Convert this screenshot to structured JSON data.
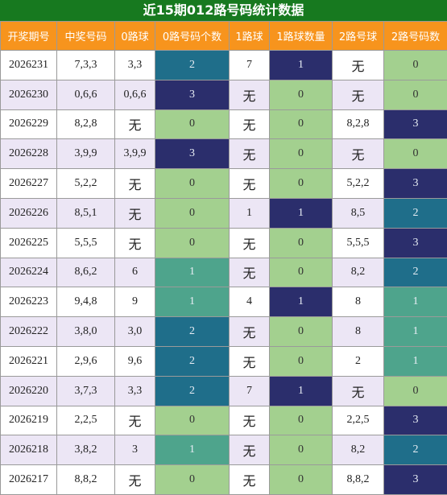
{
  "title": "近15期012路号码统计数据",
  "table": {
    "header": [
      "开奖期号",
      "中奖号码",
      "0路球",
      "0路号码个数",
      "1路球",
      "1路球数量",
      "2路号球",
      "2路号码数"
    ],
    "rows": [
      [
        "2026231",
        "7,3,3",
        "3,3",
        2,
        "7",
        1,
        "无",
        0
      ],
      [
        "2026230",
        "0,6,6",
        "0,6,6",
        3,
        "无",
        0,
        "无",
        0
      ],
      [
        "2026229",
        "8,2,8",
        "无",
        0,
        "无",
        0,
        "8,2,8",
        3
      ],
      [
        "2026228",
        "3,9,9",
        "3,9,9",
        3,
        "无",
        0,
        "无",
        0
      ],
      [
        "2026227",
        "5,2,2",
        "无",
        0,
        "无",
        0,
        "5,2,2",
        3
      ],
      [
        "2026226",
        "8,5,1",
        "无",
        0,
        "1",
        1,
        "8,5",
        2
      ],
      [
        "2026225",
        "5,5,5",
        "无",
        0,
        "无",
        0,
        "5,5,5",
        3
      ],
      [
        "2026224",
        "8,6,2",
        "6",
        1,
        "无",
        0,
        "8,2",
        2
      ],
      [
        "2026223",
        "9,4,8",
        "9",
        1,
        "4",
        1,
        "8",
        1
      ],
      [
        "2026222",
        "3,8,0",
        "3,0",
        2,
        "无",
        0,
        "8",
        1
      ],
      [
        "2026221",
        "2,9,6",
        "9,6",
        2,
        "无",
        0,
        "2",
        1
      ],
      [
        "2026220",
        "3,7,3",
        "3,3",
        2,
        "7",
        1,
        "无",
        0
      ],
      [
        "2026219",
        "2,2,5",
        "无",
        0,
        "无",
        0,
        "2,2,5",
        3
      ],
      [
        "2026218",
        "3,8,2",
        "3",
        1,
        "无",
        0,
        "8,2",
        2
      ],
      [
        "2026217",
        "8,8,2",
        "无",
        0,
        "无",
        0,
        "8,8,2",
        3
      ]
    ]
  }
}
